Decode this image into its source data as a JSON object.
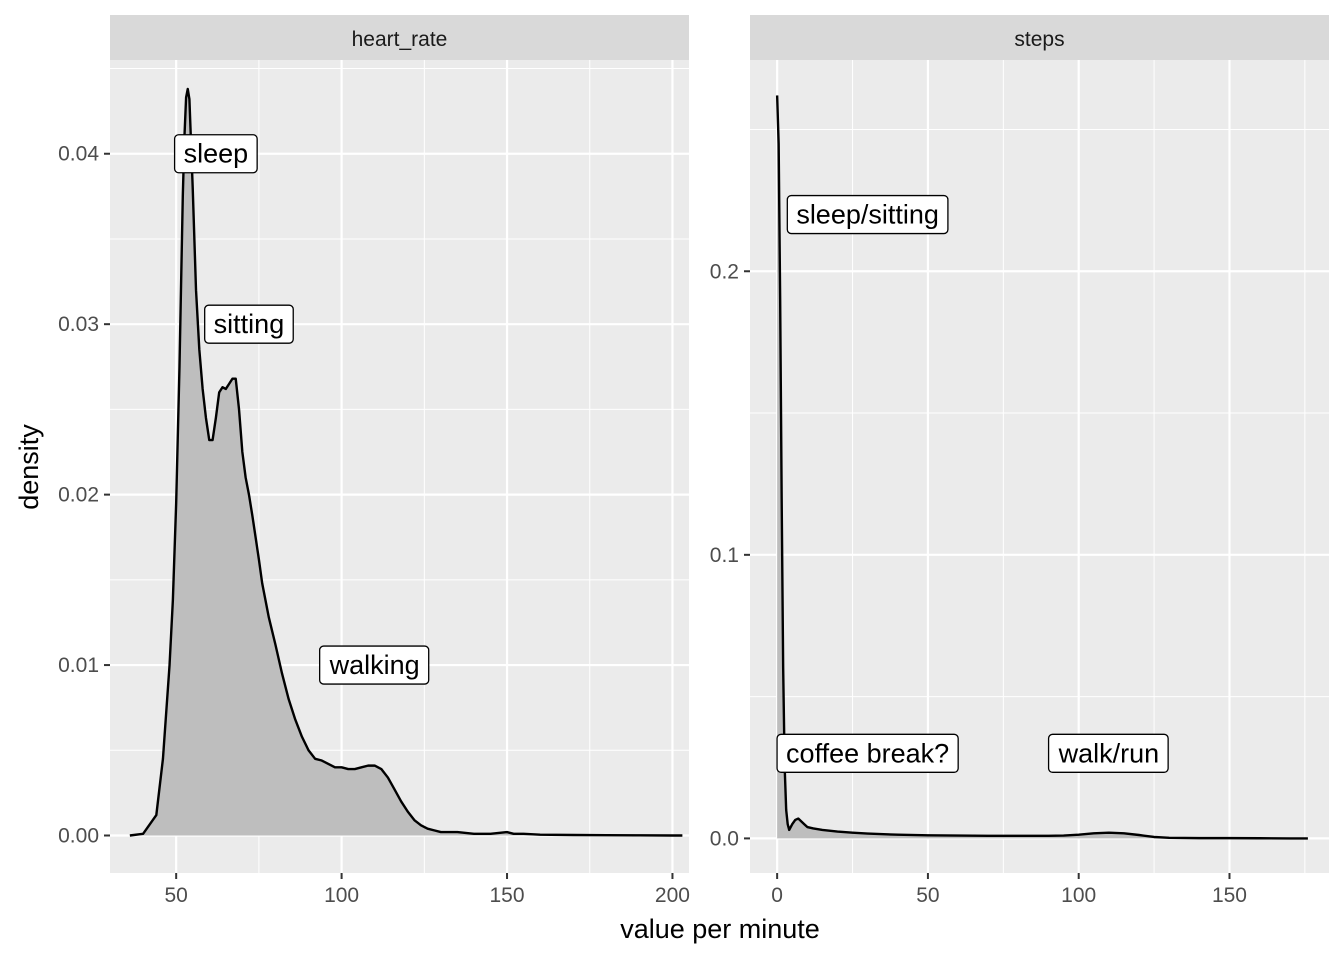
{
  "colors": {
    "panel_bg": "#ebebeb",
    "strip_bg": "#d9d9d9",
    "grid": "#ffffff",
    "fill": "#bebebe",
    "line": "#000000",
    "tick_text": "#4d4d4d"
  },
  "chart": {
    "xlabel": "value per minute",
    "ylabel": "density"
  },
  "chart_data": [
    {
      "type": "area",
      "facet": "heart_rate",
      "xlim": [
        30,
        205
      ],
      "ylim": [
        -0.0022,
        0.0455
      ],
      "x_ticks": [
        50,
        100,
        150,
        200
      ],
      "y_ticks": [
        0.0,
        0.01,
        0.02,
        0.03,
        0.04
      ],
      "y_tick_labels": [
        "0.00",
        "0.01",
        "0.02",
        "0.03",
        "0.04"
      ],
      "grid": true,
      "x": [
        36,
        40,
        44,
        46,
        48,
        49,
        50,
        51,
        52,
        52.5,
        53,
        53.5,
        54,
        55,
        56,
        57,
        58,
        59,
        60,
        61,
        62,
        63,
        64,
        65,
        66,
        67,
        68,
        69,
        70,
        71,
        72,
        73,
        74,
        75,
        76,
        78,
        80,
        82,
        84,
        86,
        88,
        90,
        92,
        94,
        96,
        98,
        100,
        102,
        104,
        106,
        108,
        110,
        112,
        114,
        116,
        118,
        120,
        122,
        124,
        126,
        128,
        130,
        135,
        140,
        145,
        150,
        152,
        155,
        160,
        170,
        180,
        190,
        200,
        203
      ],
      "y": [
        0.0,
        0.0001,
        0.0012,
        0.0045,
        0.01,
        0.0138,
        0.0195,
        0.0275,
        0.0375,
        0.041,
        0.0433,
        0.0438,
        0.0432,
        0.038,
        0.032,
        0.0285,
        0.0262,
        0.0245,
        0.0232,
        0.0232,
        0.0245,
        0.026,
        0.0263,
        0.0262,
        0.0265,
        0.0268,
        0.0268,
        0.025,
        0.0225,
        0.021,
        0.02,
        0.0188,
        0.0175,
        0.0162,
        0.0148,
        0.0128,
        0.0112,
        0.0095,
        0.008,
        0.0068,
        0.0058,
        0.005,
        0.0045,
        0.0044,
        0.0042,
        0.004,
        0.004,
        0.0039,
        0.0039,
        0.004,
        0.0041,
        0.0041,
        0.0039,
        0.0034,
        0.0027,
        0.002,
        0.0014,
        0.0009,
        0.0006,
        0.0004,
        0.0003,
        0.0002,
        0.0002,
        0.0001,
        0.0001,
        0.0002,
        0.0001,
        0.0001,
        5e-05,
        3e-05,
        2e-05,
        1e-05,
        0.0,
        0.0
      ],
      "annotations": [
        {
          "text": "sleep",
          "x": 62,
          "y": 0.04
        },
        {
          "text": "sitting",
          "x": 72,
          "y": 0.03
        },
        {
          "text": "walking",
          "x": 110,
          "y": 0.01
        }
      ]
    },
    {
      "type": "area",
      "facet": "steps",
      "xlim": [
        -9,
        183
      ],
      "ylim": [
        -0.0122,
        0.2745
      ],
      "x_ticks": [
        0,
        50,
        100,
        150
      ],
      "y_ticks": [
        0.0,
        0.1,
        0.2
      ],
      "y_tick_labels": [
        "0.0",
        "0.1",
        "0.2"
      ],
      "grid": true,
      "x": [
        0,
        0.5,
        1,
        1.5,
        2,
        2.5,
        3,
        3.5,
        4,
        5,
        6,
        7,
        8,
        9,
        10,
        12,
        15,
        20,
        25,
        30,
        40,
        50,
        60,
        70,
        80,
        90,
        95,
        100,
        105,
        110,
        115,
        120,
        125,
        130,
        140,
        150,
        160,
        170,
        176
      ],
      "y": [
        0.262,
        0.245,
        0.19,
        0.12,
        0.06,
        0.025,
        0.01,
        0.005,
        0.003,
        0.005,
        0.0065,
        0.007,
        0.006,
        0.005,
        0.004,
        0.0035,
        0.003,
        0.0024,
        0.002,
        0.0017,
        0.0013,
        0.0011,
        0.001,
        0.0009,
        0.0009,
        0.0009,
        0.001,
        0.0013,
        0.0018,
        0.002,
        0.0018,
        0.0012,
        0.0005,
        0.0002,
        0.0001,
        0.0001,
        5e-05,
        0.0,
        0.0
      ],
      "annotations": [
        {
          "text": "sleep/sitting",
          "x": 30,
          "y": 0.22
        },
        {
          "text": "coffee break?",
          "x": 30,
          "y": 0.03
        },
        {
          "text": "walk/run",
          "x": 110,
          "y": 0.03
        }
      ]
    }
  ]
}
